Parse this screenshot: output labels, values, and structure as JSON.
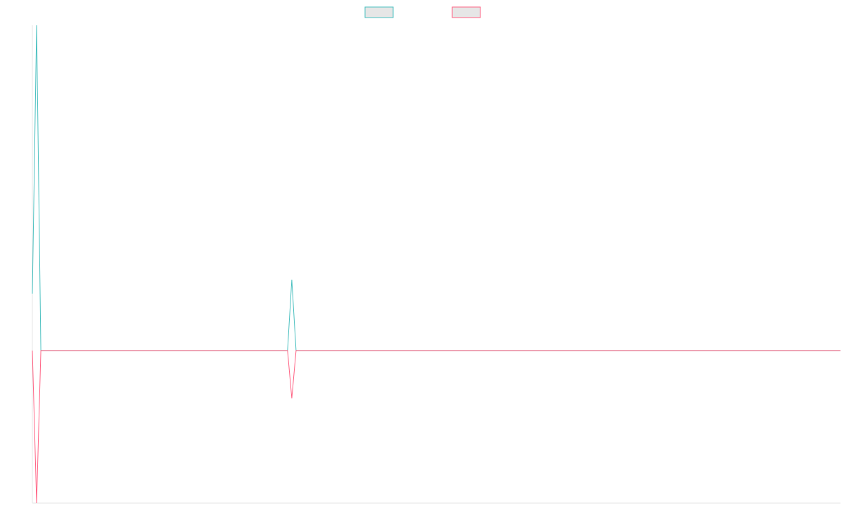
{
  "chart_data": {
    "type": "line",
    "x": [
      0,
      1,
      2,
      60,
      61,
      62,
      190
    ],
    "series": [
      {
        "color": "#4bc0c0",
        "values": [
          17.5,
          100,
          0,
          0,
          21.8,
          0,
          0
        ]
      },
      {
        "color": "#ff6384",
        "values": [
          0,
          -46.9,
          0,
          0,
          -14.7,
          0,
          0
        ]
      }
    ],
    "xlim": [
      0,
      190
    ],
    "ylim": [
      -46.9,
      100
    ],
    "grid": false,
    "legend": "top"
  }
}
